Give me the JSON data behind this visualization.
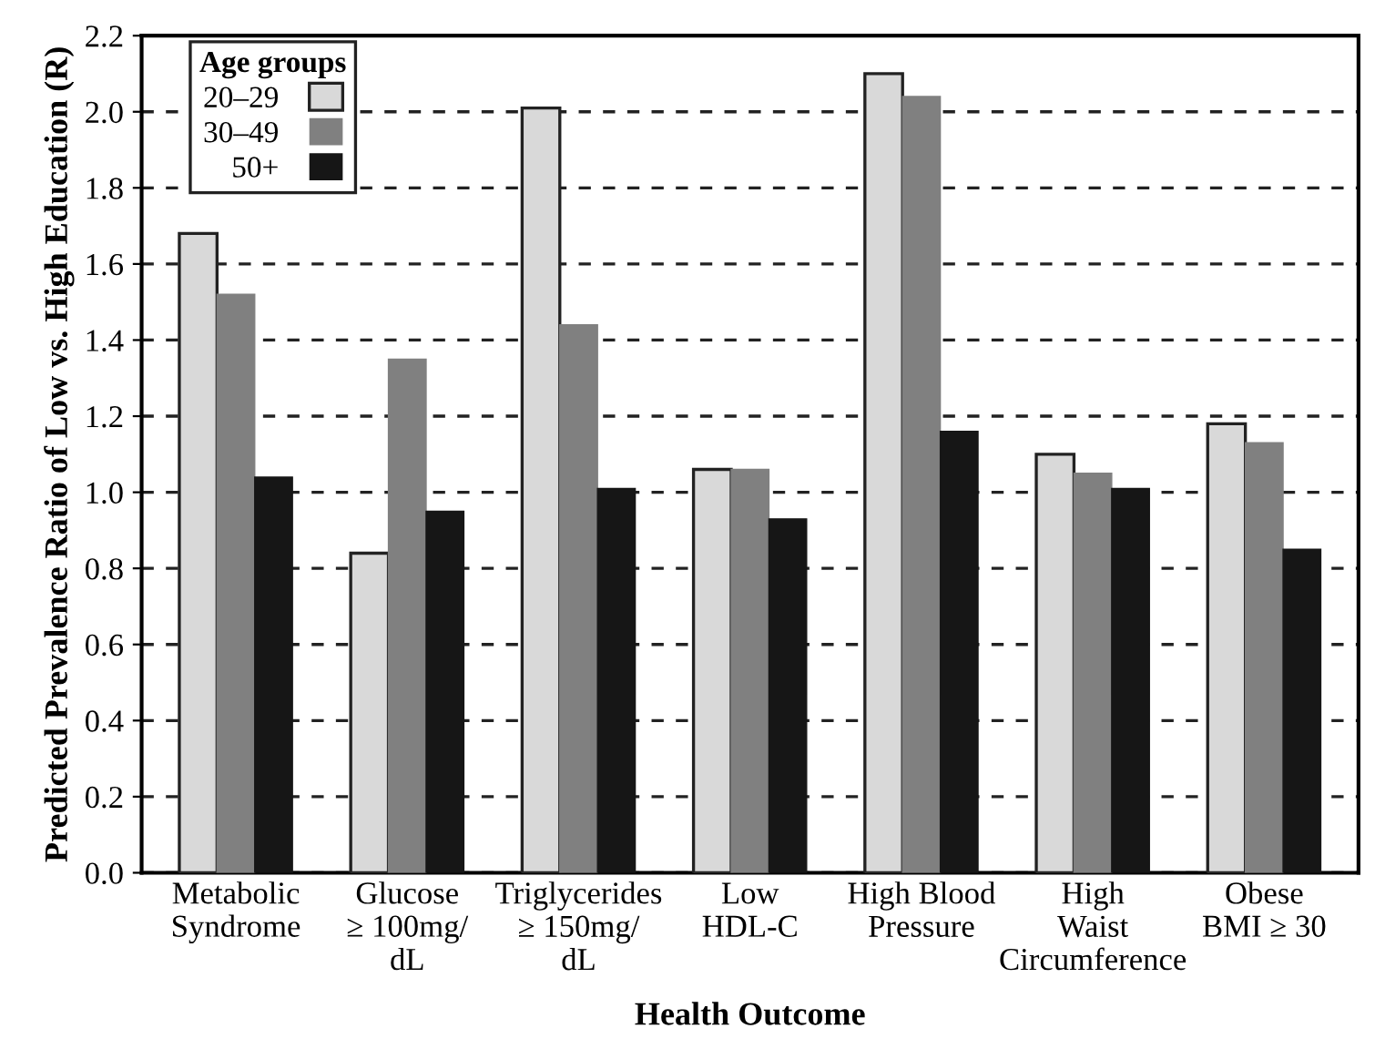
{
  "chart_data": {
    "type": "bar",
    "xlabel": "Health Outcome",
    "ylabel": "Predicted Prevalence Ratio of Low vs. High Education (R)",
    "legend_title": "Age groups",
    "categories": [
      "Metabolic\nSyndrome",
      "Glucose\n≥ 100mg/\ndL",
      "Triglycerides\n≥ 150mg/\ndL",
      "Low\nHDL-C",
      "High Blood\nPressure",
      "High\nWaist\nCircumference",
      "Obese\nBMI ≥ 30"
    ],
    "series": [
      {
        "name": "20–29",
        "color": "#d9d9d9",
        "values": [
          1.68,
          0.84,
          2.01,
          1.06,
          2.1,
          1.1,
          1.18
        ]
      },
      {
        "name": "30–49",
        "color": "#808080",
        "values": [
          1.52,
          1.35,
          1.44,
          1.06,
          2.04,
          1.05,
          1.13
        ]
      },
      {
        "name": "50+",
        "color": "#161616",
        "values": [
          1.04,
          0.95,
          1.01,
          0.93,
          1.16,
          1.01,
          0.85
        ]
      }
    ],
    "ylim": [
      0,
      2.2
    ],
    "yticks": [
      {
        "value": 0,
        "label": "0.0"
      },
      {
        "value": 0.2,
        "label": "0.2"
      },
      {
        "value": 0.4,
        "label": "0.4"
      },
      {
        "value": 0.6,
        "label": "0.6"
      },
      {
        "value": 0.8,
        "label": "0.8"
      },
      {
        "value": 1.0,
        "label": "1.0"
      },
      {
        "value": 1.2,
        "label": "1.2"
      },
      {
        "value": 1.4,
        "label": "1.4"
      },
      {
        "value": 1.6,
        "label": "1.6"
      },
      {
        "value": 1.8,
        "label": "1.8"
      },
      {
        "value": 2.0,
        "label": "2.0"
      },
      {
        "value": 2.2,
        "label": "2.2"
      }
    ],
    "grid": "y",
    "legend": "top left",
    "line_style": "dashed"
  }
}
